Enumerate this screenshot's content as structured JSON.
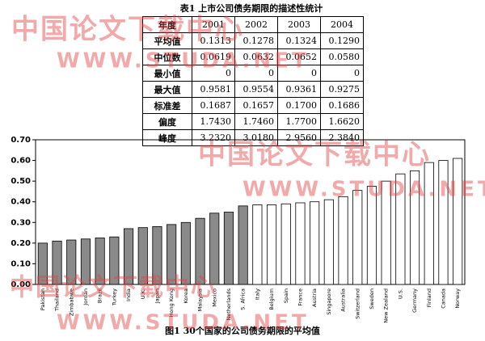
{
  "table": {
    "caption": "表1  上市公司债务期限的描述性统计",
    "header": [
      "年度",
      "2001",
      "2002",
      "2003",
      "2004"
    ],
    "rows": [
      [
        "平均值",
        "0.1313",
        "0.1278",
        "0.1324",
        "0.1290"
      ],
      [
        "中位数",
        "0.0619",
        "0.0632",
        "0.0652",
        "0.0580"
      ],
      [
        "最小值",
        "0",
        "0",
        "0",
        "0"
      ],
      [
        "最大值",
        "0.9581",
        "0.9554",
        "0.9361",
        "0.9275"
      ],
      [
        "标准差",
        "0.1687",
        "0.1657",
        "0.1700",
        "0.1686"
      ],
      [
        "偏度",
        "1.7430",
        "1.7460",
        "1.7700",
        "1.6620"
      ],
      [
        "峰度",
        "3.2320",
        "3.0180",
        "2.9560",
        "2.3840"
      ]
    ]
  },
  "chart_data": {
    "type": "bar",
    "categories": [
      "Pakistan",
      "Thailand",
      "Zimbabwe",
      "Jordan",
      "Brazil",
      "Turkey",
      "India",
      "U.K.",
      "Japan",
      "Hong Kong",
      "Korea",
      "Malaysia",
      "Mexico",
      "Netherlands",
      "S. Africa",
      "Italy",
      "Belgium",
      "Spain",
      "France",
      "Austria",
      "Singapore",
      "Australia",
      "Switzerland",
      "Sweden",
      "New Zealand",
      "U.S.",
      "Germany",
      "Finland",
      "Canada",
      "Norway"
    ],
    "values": [
      0.2,
      0.21,
      0.215,
      0.22,
      0.225,
      0.23,
      0.27,
      0.275,
      0.28,
      0.29,
      0.3,
      0.32,
      0.345,
      0.35,
      0.38,
      0.385,
      0.385,
      0.39,
      0.395,
      0.4,
      0.41,
      0.425,
      0.455,
      0.475,
      0.5,
      0.535,
      0.55,
      0.59,
      0.6,
      0.61
    ],
    "colors": [
      "#8a8a8a",
      "#8a8a8a",
      "#8a8a8a",
      "#8a8a8a",
      "#8a8a8a",
      "#8a8a8a",
      "#8a8a8a",
      "#8a8a8a",
      "#8a8a8a",
      "#8a8a8a",
      "#8a8a8a",
      "#8a8a8a",
      "#8a8a8a",
      "#8a8a8a",
      "#8a8a8a",
      "#ffffff",
      "#ffffff",
      "#ffffff",
      "#ffffff",
      "#ffffff",
      "#ffffff",
      "#ffffff",
      "#ffffff",
      "#ffffff",
      "#ffffff",
      "#ffffff",
      "#ffffff",
      "#ffffff",
      "#ffffff",
      "#ffffff"
    ],
    "ylim": [
      0,
      0.7
    ],
    "yticks": [
      {
        "value": 0,
        "label": "0.00"
      },
      {
        "value": 0.1,
        "label": "0.10"
      },
      {
        "value": 0.2,
        "label": "0.20"
      },
      {
        "value": 0.3,
        "label": "0.30"
      },
      {
        "value": 0.4,
        "label": "0.40"
      },
      {
        "value": 0.5,
        "label": "0.50"
      },
      {
        "value": 0.6,
        "label": "0.60"
      },
      {
        "value": 0.7,
        "label": "0.70"
      }
    ],
    "caption": "图1  30个国家的公司债务期限的平均值"
  },
  "watermarks": [
    "中国论文下载中心",
    "WWW.STUDA.NET",
    "中国论文下载中心",
    "WWW.STUDA.NET",
    "中国论文下载中心",
    "WWW.STUDA.NET"
  ]
}
